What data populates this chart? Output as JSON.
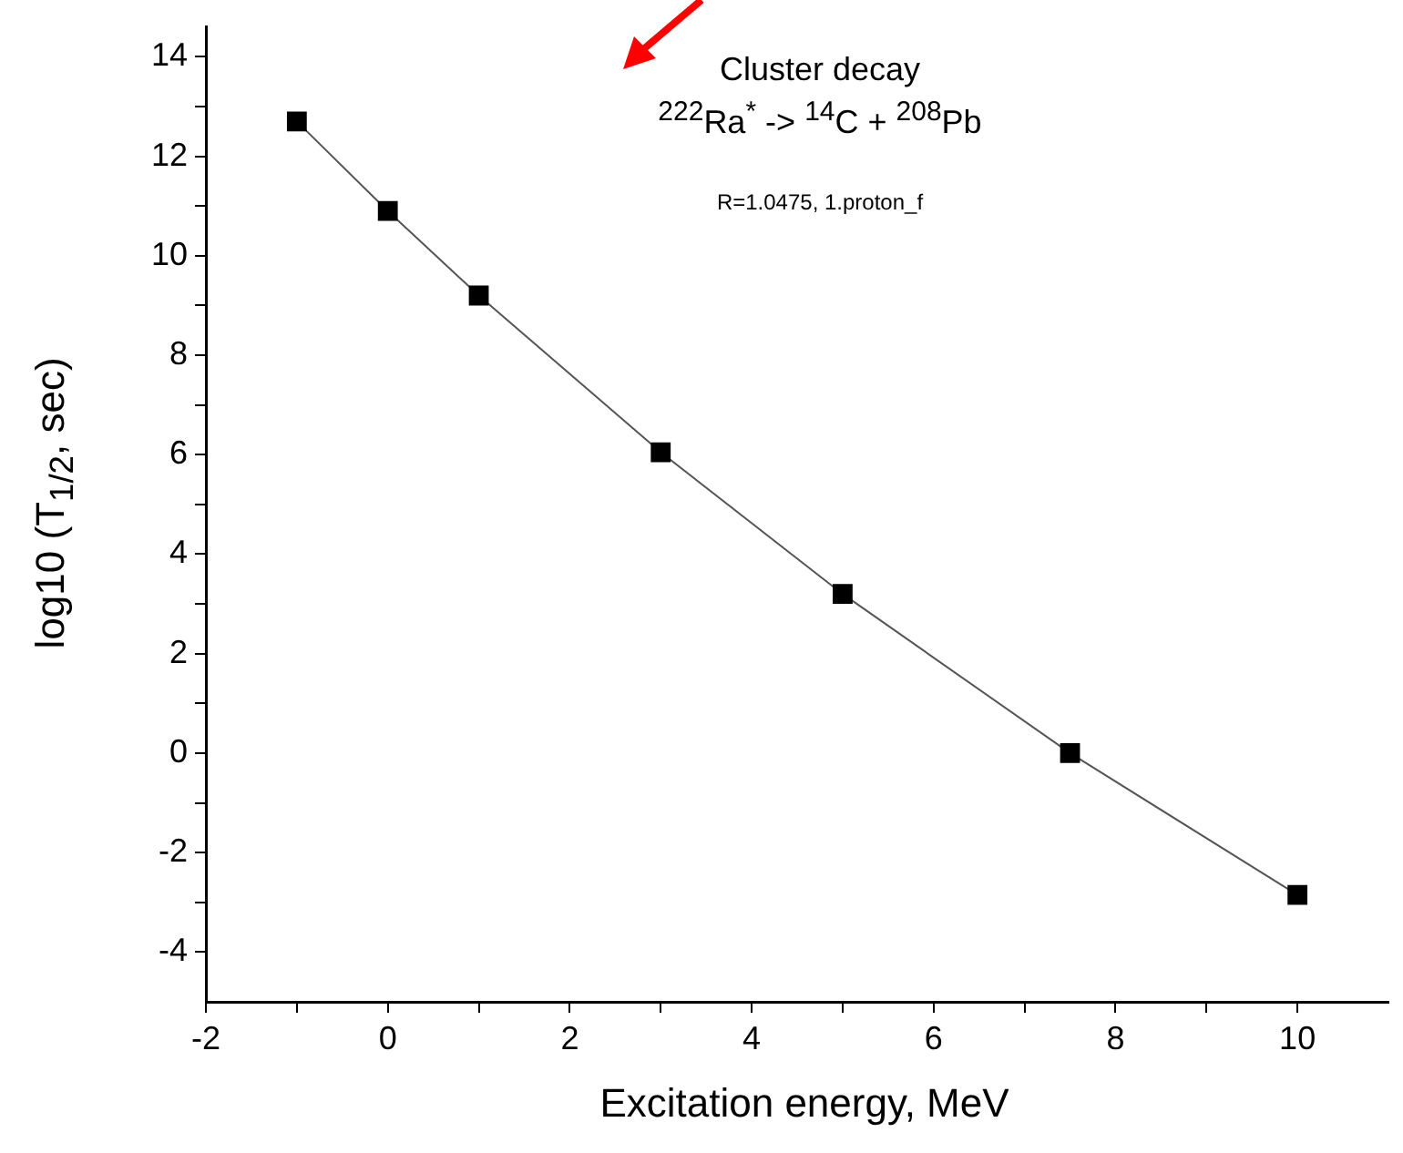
{
  "chart_data": {
    "type": "line",
    "xlabel": "Excitation energy, MeV",
    "ylabel": "log10 (T$_{1/2}$, sec)",
    "annotations": [
      "Cluster decay",
      "$^{222}$Ra$^{*}$ -> $^{14}$C + $^{208}$Pb",
      "R=1.0475, 1.proton_f"
    ],
    "x": [
      -1,
      0,
      1,
      3,
      5,
      7.5,
      10
    ],
    "values": [
      12.7,
      10.9,
      9.2,
      6.05,
      3.2,
      0,
      -2.85
    ],
    "color": "#000000",
    "marker": "square",
    "line_style": "solid",
    "grid": false,
    "legend": false,
    "xlim": [
      -2,
      11
    ],
    "xticks": [
      -2,
      {
        "value": -1,
        "label": null
      },
      0,
      {
        "value": 1,
        "label": null
      },
      2,
      {
        "value": 3,
        "label": null
      },
      4,
      {
        "value": 5,
        "label": null
      },
      6,
      {
        "value": 7,
        "label": null
      },
      8,
      {
        "value": 9,
        "label": null
      },
      10
    ],
    "ylim": [
      -5,
      14.6
    ],
    "yticks": [
      -4,
      {
        "value": -3,
        "label": null
      },
      -2,
      {
        "value": -1,
        "label": null
      },
      0,
      {
        "value": 1,
        "label": null
      },
      2,
      {
        "value": 3,
        "label": null
      },
      4,
      {
        "value": 5,
        "label": null
      },
      6,
      {
        "value": 7,
        "label": null
      },
      8,
      {
        "value": 9,
        "label": null
      },
      10,
      {
        "value": 11,
        "label": null
      },
      12,
      {
        "value": 13,
        "label": null
      },
      14
    ]
  }
}
